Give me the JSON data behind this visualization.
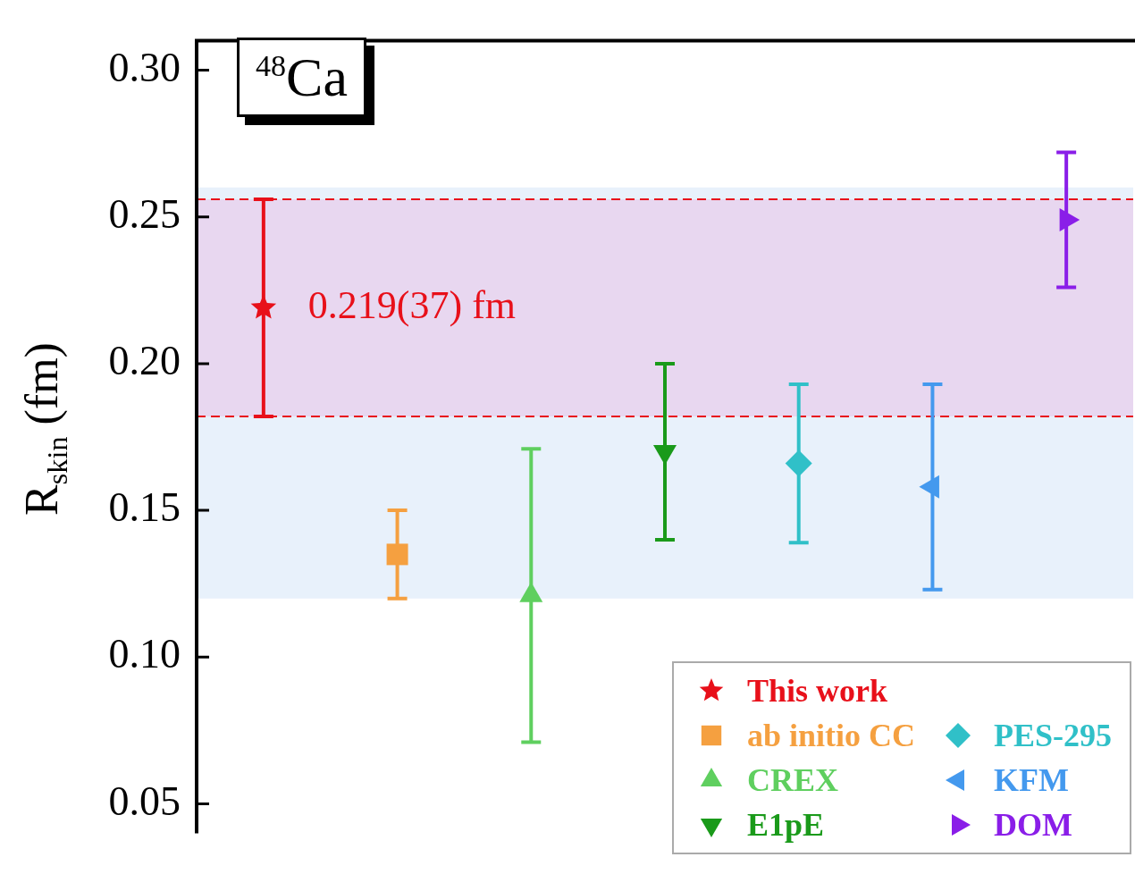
{
  "chart_data": {
    "type": "scatter",
    "ylabel": "R$_{skin}$ (fm)",
    "categories": [
      null,
      null,
      null,
      null,
      null,
      null,
      null
    ],
    "ylim": [
      0.04,
      0.31
    ],
    "yticks": [
      {
        "value": 0.05,
        "label": "0.05"
      },
      {
        "value": 0.1,
        "label": "0.10"
      },
      {
        "value": 0.15,
        "label": "0.15"
      },
      {
        "value": 0.2,
        "label": "0.20"
      },
      {
        "value": 0.25,
        "label": "0.25"
      },
      {
        "value": 0.3,
        "label": "0.30"
      }
    ],
    "grid": false,
    "legend": "bottom right",
    "tick_labels": "y",
    "series": [
      {
        "name": "This work",
        "color": "#e8101a",
        "marker": "star",
        "values": [
          0.219,
          null,
          null,
          null,
          null,
          null,
          null
        ],
        "errors": [
          0.037,
          null,
          null,
          null,
          null,
          null,
          null
        ]
      },
      {
        "name": "ab initio CC",
        "color": "#f5a040",
        "marker": "square",
        "values": [
          null,
          0.135,
          null,
          null,
          null,
          null,
          null
        ],
        "errors": [
          null,
          0.015,
          null,
          null,
          null,
          null,
          null
        ]
      },
      {
        "name": "CREX",
        "color": "#5fcf5f",
        "marker": "triangle",
        "values": [
          null,
          null,
          0.121,
          null,
          null,
          null,
          null
        ],
        "errors": [
          null,
          null,
          0.05,
          null,
          null,
          null,
          null
        ]
      },
      {
        "name": "E1pE",
        "color": "#1a9a1a",
        "marker": "triangle-down",
        "values": [
          null,
          null,
          null,
          0.17,
          null,
          null,
          null
        ],
        "errors": [
          null,
          null,
          null,
          0.03,
          null,
          null,
          null
        ]
      },
      {
        "name": "PES-295",
        "color": "#30c0c8",
        "marker": "diamond",
        "values": [
          null,
          null,
          null,
          null,
          0.166,
          null,
          null
        ],
        "errors": [
          null,
          null,
          null,
          null,
          0.027,
          null,
          null
        ]
      },
      {
        "name": "KFM",
        "color": "#4499ee",
        "marker": "triangle-left",
        "values": [
          null,
          null,
          null,
          null,
          null,
          0.158,
          null
        ],
        "errors": [
          null,
          null,
          null,
          null,
          null,
          0.035,
          null
        ]
      },
      {
        "name": "DOM",
        "color": "#8a1ee8",
        "marker": "triangle-right",
        "values": [
          null,
          null,
          null,
          null,
          null,
          null,
          0.249
        ],
        "errors": [
          null,
          null,
          null,
          null,
          null,
          null,
          0.023
        ]
      }
    ],
    "bands": [
      {
        "axis": "y",
        "from": 0.12,
        "to": 0.26,
        "color": "#e8f1fb"
      },
      {
        "axis": "y",
        "from": 0.182,
        "to": 0.256,
        "color": "#e79ad8"
      }
    ],
    "ref_lines": [
      {
        "axis": "y",
        "value": 0.256,
        "color": "#e8101a",
        "line_style": "dashed"
      },
      {
        "axis": "y",
        "value": 0.182,
        "color": "#e8101a",
        "line_style": "dashed"
      }
    ],
    "annotations": [
      "$^{48}$Ca",
      "0.219(37) fm"
    ]
  }
}
